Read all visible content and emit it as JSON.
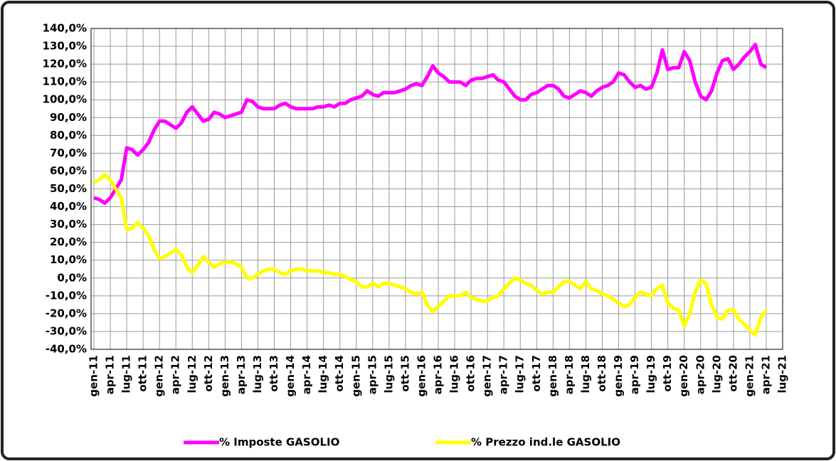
{
  "chart_data": {
    "type": "line",
    "categories": [
      "gen-11",
      null,
      null,
      "apr-11",
      null,
      null,
      "lug-11",
      null,
      null,
      "ott-11",
      null,
      null,
      "gen-12",
      null,
      null,
      "apr-12",
      null,
      null,
      "lug-12",
      null,
      null,
      "ott-12",
      null,
      null,
      "gen-13",
      null,
      null,
      "apr-13",
      null,
      null,
      "lug-13",
      null,
      null,
      "ott-13",
      null,
      null,
      "gen-14",
      null,
      null,
      "apr-14",
      null,
      null,
      "lug-14",
      null,
      null,
      "ott-14",
      null,
      null,
      "gen-15",
      null,
      null,
      "apr-15",
      null,
      null,
      "lug-15",
      null,
      null,
      "ott-15",
      null,
      null,
      "gen-16",
      null,
      null,
      "apr-16",
      null,
      null,
      "lug-16",
      null,
      null,
      "ott-16",
      null,
      null,
      "gen-17",
      null,
      null,
      "apr-17",
      null,
      null,
      "lug-17",
      null,
      null,
      "ott-17",
      null,
      null,
      "gen-18",
      null,
      null,
      "apr-18",
      null,
      null,
      "lug-18",
      null,
      null,
      "ott-18",
      null,
      null,
      "gen-19",
      null,
      null,
      "apr-19",
      null,
      null,
      "lug-19",
      null,
      null,
      "ott-19",
      null,
      null,
      "gen-20",
      null,
      null,
      "apr-20",
      null,
      null,
      "lug-20",
      null,
      null,
      "ott-20",
      null,
      null,
      "gen-21",
      null,
      null,
      "apr-21",
      null,
      null,
      "lug-21"
    ],
    "series": [
      {
        "name": "% Imposte GASOLIO",
        "color": "#ff00ff",
        "values": [
          45,
          44,
          42,
          45,
          50,
          55,
          73,
          72,
          69,
          72,
          76,
          83,
          88,
          88,
          86,
          84,
          87,
          93,
          96,
          92,
          88,
          89,
          93,
          92,
          90,
          91,
          92,
          93,
          100,
          99,
          96,
          95,
          95,
          95,
          97,
          98,
          96,
          95,
          95,
          95,
          95,
          96,
          96,
          97,
          96,
          98,
          98,
          100,
          101,
          102,
          105,
          103,
          102,
          104,
          104,
          104,
          105,
          106,
          108,
          109,
          108,
          113,
          119,
          115,
          113,
          110,
          110,
          110,
          108,
          111,
          112,
          112,
          113,
          114,
          111,
          110,
          106,
          102,
          100,
          100,
          103,
          104,
          106,
          108,
          108,
          106,
          102,
          101,
          103,
          105,
          104,
          102,
          105,
          107,
          108,
          110,
          115,
          114,
          110,
          107,
          108,
          106,
          107,
          115,
          128,
          117,
          118,
          118,
          127,
          122,
          110,
          102,
          100,
          105,
          115,
          122,
          123,
          117,
          120,
          124,
          127,
          131,
          120,
          118,
          null,
          null,
          null
        ]
      },
      {
        "name": "% Prezzo ind.le GASOLIO",
        "color": "#ffff00",
        "values": [
          54,
          55,
          58,
          55,
          50,
          45,
          27,
          28,
          31,
          28,
          24,
          16,
          11,
          12,
          14,
          16,
          13,
          6,
          3,
          7,
          12,
          9,
          6,
          8,
          9,
          9,
          8,
          6,
          0,
          0,
          2,
          4,
          5,
          5,
          3,
          2,
          4,
          5,
          5,
          4,
          4,
          4,
          3,
          3,
          2,
          2,
          1,
          -1,
          -2,
          -5,
          -5,
          -3,
          -5,
          -3,
          -3,
          -4,
          -5,
          -6,
          -8,
          -9,
          -8,
          -15,
          -19,
          -16,
          -13,
          -10,
          -10,
          -10,
          -8,
          -11,
          -12,
          -13,
          -13,
          -11,
          -10,
          -6,
          -3,
          0,
          -1,
          -3,
          -4,
          -7,
          -9,
          -8,
          -8,
          -5,
          -2,
          -2,
          -4,
          -6,
          -2,
          -6,
          -7,
          -9,
          -10,
          -12,
          -14,
          -16,
          -15,
          -11,
          -8,
          -9,
          -10,
          -6,
          -4,
          -14,
          -17,
          -18,
          -27,
          -20,
          -8,
          -1,
          -3,
          -15,
          -22,
          -23,
          -18,
          -18,
          -23,
          -26,
          -29,
          -32,
          -22,
          -18,
          null,
          null,
          null
        ]
      }
    ],
    "ylim": [
      -40,
      140
    ],
    "yticks": [
      {
        "value": -40,
        "label": "-40,0%"
      },
      {
        "value": -30,
        "label": "-30,0%"
      },
      {
        "value": -20,
        "label": "-20,0%"
      },
      {
        "value": -10,
        "label": "-10,0%"
      },
      {
        "value": 0,
        "label": "0,0%"
      },
      {
        "value": 10,
        "label": "10,0%"
      },
      {
        "value": 20,
        "label": "20,0%"
      },
      {
        "value": 30,
        "label": "30,0%"
      },
      {
        "value": 40,
        "label": "40,0%"
      },
      {
        "value": 50,
        "label": "50,0%"
      },
      {
        "value": 60,
        "label": "60,0%"
      },
      {
        "value": 70,
        "label": "70,0%"
      },
      {
        "value": 80,
        "label": "80,0%"
      },
      {
        "value": 90,
        "label": "90,0%"
      },
      {
        "value": 100,
        "label": "100,0%"
      },
      {
        "value": 110,
        "label": "110,0%"
      },
      {
        "value": 120,
        "label": "120,0%"
      },
      {
        "value": 130,
        "label": "130,0%"
      },
      {
        "value": 140,
        "label": "140,0%"
      }
    ],
    "grid": true,
    "legend": "bottom"
  }
}
